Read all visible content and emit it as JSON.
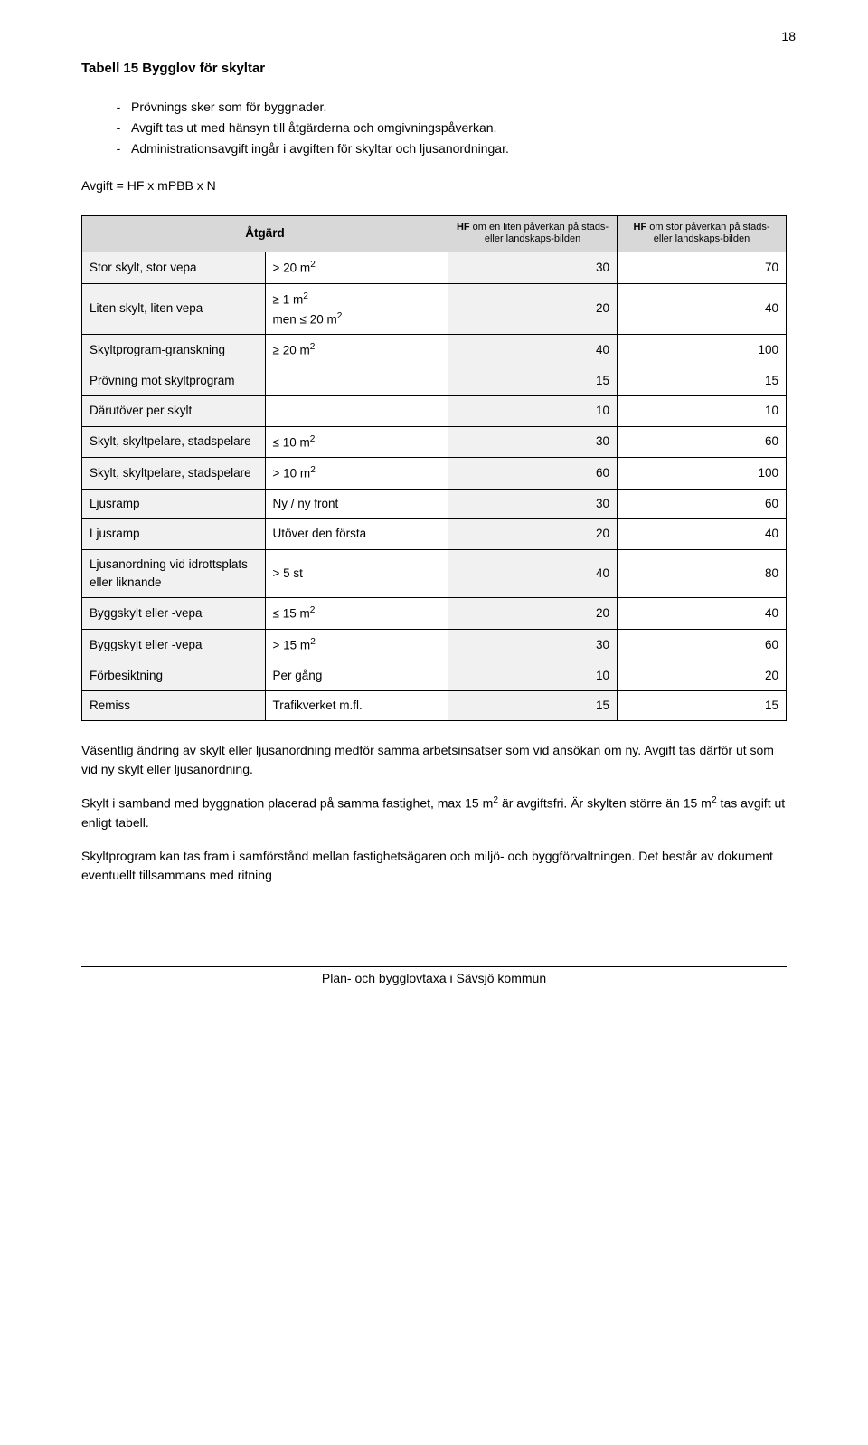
{
  "pageNumber": "18",
  "title": "Tabell 15 Bygglov för skyltar",
  "notes": [
    "Prövnings sker som för byggnader.",
    "Avgift tas ut med hänsyn till åtgärderna och omgivningspåverkan.",
    "Administrationsavgift ingår i avgiften för skyltar och ljusanordningar."
  ],
  "formula": "Avgift = HF x mPBB x N",
  "headers": {
    "h0": "Åtgärd",
    "h1": "",
    "h2_pre": "HF",
    "h2_rest": " om en liten påverkan på stads- eller landskaps-bilden",
    "h3_pre": "HF",
    "h3_rest": " om stor påverkan på stads- eller landskaps-bilden"
  },
  "rows": [
    {
      "c0": "Stor skylt, stor vepa",
      "c1": "> 20 m²",
      "c2": "30",
      "c3": "70"
    },
    {
      "c0": "Liten skylt, liten vepa",
      "c1": "≥ 1 m²\nmen ≤ 20 m²",
      "c2": "20",
      "c3": "40"
    },
    {
      "c0": "Skyltprogram-granskning",
      "c1": "≥ 20 m²",
      "c2": "40",
      "c3": "100"
    },
    {
      "c0": "Prövning mot skyltprogram",
      "c1": "",
      "c2": "15",
      "c3": "15"
    },
    {
      "c0": "Därutöver per skylt",
      "c1": "",
      "c2": "10",
      "c3": "10"
    },
    {
      "c0": "Skylt, skyltpelare, stadspelare",
      "c1": "≤ 10 m²",
      "c2": "30",
      "c3": "60"
    },
    {
      "c0": "Skylt, skyltpelare, stadspelare",
      "c1": "> 10 m²",
      "c2": "60",
      "c3": "100"
    },
    {
      "c0": "Ljusramp",
      "c1": "Ny / ny front",
      "c2": "30",
      "c3": "60"
    },
    {
      "c0": "Ljusramp",
      "c1": "Utöver den första",
      "c2": "20",
      "c3": "40"
    },
    {
      "c0": "Ljusanordning vid idrottsplats eller liknande",
      "c1": "> 5 st",
      "c2": "40",
      "c3": "80"
    },
    {
      "c0": "Byggskylt eller -vepa",
      "c1": "≤ 15 m²",
      "c2": "20",
      "c3": "40"
    },
    {
      "c0": "Byggskylt eller -vepa",
      "c1": "> 15 m²",
      "c2": "30",
      "c3": "60"
    },
    {
      "c0": "Förbesiktning",
      "c1": "Per gång",
      "c2": "10",
      "c3": "20"
    },
    {
      "c0": "Remiss",
      "c1": "Trafikverket m.fl.",
      "c2": "15",
      "c3": "15"
    }
  ],
  "para1": "Väsentlig ändring av skylt eller ljusanordning medför samma arbetsinsatser som vid ansökan om ny. Avgift tas därför ut som vid ny skylt eller ljusanordning.",
  "para2": "Skylt i samband med byggnation placerad på samma fastighet, max 15 m² är avgiftsfri. Är skylten större än 15 m² tas avgift ut enligt tabell.",
  "para3": "Skyltprogram kan tas fram i samförstånd mellan fastighetsägaren och miljö- och byggförvaltningen. Det består av dokument eventuellt tillsammans med ritning",
  "footer": "Plan- och bygglovtaxa i Sävsjö kommun"
}
